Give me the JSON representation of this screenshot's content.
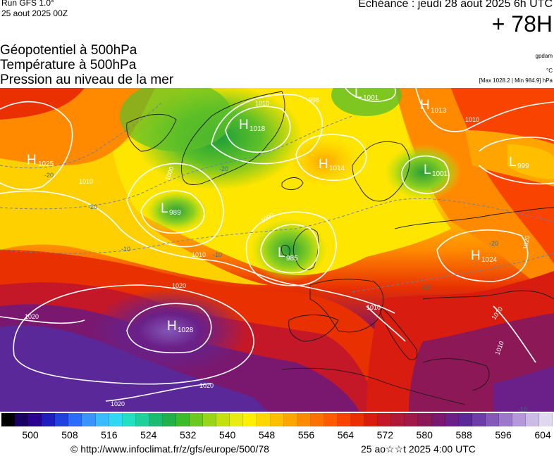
{
  "header": {
    "run": "Run GFS 1.0°",
    "run_date": "25 aout 2025 00Z",
    "echeance": "Echéance : jeudi 28 aout 2025 6h UTC",
    "lead_time": "+ 78H",
    "title_lines": [
      "Géopotentiel à 500hPa",
      "Température à 500hPa",
      "Pression au niveau de la mer"
    ],
    "unit_geo": "gpdam",
    "unit_temp": "°C",
    "pressure_range": "[Max 1028.2 | Min 984.9] hPa"
  },
  "pressure_centers": [
    {
      "type": "H",
      "value": "1025"
    },
    {
      "type": "H",
      "value": "1018"
    },
    {
      "type": "L",
      "value": "1001"
    },
    {
      "type": "H",
      "value": "1013"
    },
    {
      "type": "H",
      "value": "1014"
    },
    {
      "type": "L",
      "value": "1001"
    },
    {
      "type": "L",
      "value": "999"
    },
    {
      "type": "L",
      "value": "989"
    },
    {
      "type": "L",
      "value": "985"
    },
    {
      "type": "H",
      "value": "1024"
    },
    {
      "type": "H",
      "value": "1028"
    }
  ],
  "isobar_labels": [
    "1010",
    "998",
    "1000",
    "1010",
    "1000",
    "1010",
    "1020",
    "1020",
    "1020",
    "1020",
    "1010",
    "1010",
    "1010",
    "1010",
    "1020"
  ],
  "temp_labels": [
    "-20",
    "-20",
    "-10",
    "-20",
    "-10",
    "-20",
    "-10",
    "-10"
  ],
  "colorbar": {
    "ticks": [
      "500",
      "508",
      "516",
      "524",
      "532",
      "540",
      "548",
      "556",
      "564",
      "572",
      "580",
      "588",
      "596",
      "604"
    ],
    "colors": [
      "#000000",
      "#1a0060",
      "#2a0090",
      "#1c1cc0",
      "#2040e0",
      "#2a6cff",
      "#3a94ff",
      "#38bcff",
      "#30d8f0",
      "#22e0c0",
      "#20d09a",
      "#1cbc70",
      "#22b04a",
      "#3cbc28",
      "#6cc820",
      "#98d418",
      "#c4e010",
      "#e8ec10",
      "#fff000",
      "#ffd800",
      "#ffbe00",
      "#ffa400",
      "#ff8a00",
      "#ff7000",
      "#ff5a00",
      "#f84400",
      "#ea3000",
      "#d81c10",
      "#c41828",
      "#b01838",
      "#a01848",
      "#8c1858",
      "#7a1870",
      "#6a2088",
      "#5a2898",
      "#6c3ca8",
      "#8458b8",
      "#9c78c8",
      "#b498d8",
      "#ccbbe4",
      "#e0d8ee"
    ]
  },
  "footer": {
    "credit": "© http://www.infoclimat.fr/z/gfs/europe/500/78",
    "generated": "25 ao☆☆t 2025  4:00 UTC"
  }
}
